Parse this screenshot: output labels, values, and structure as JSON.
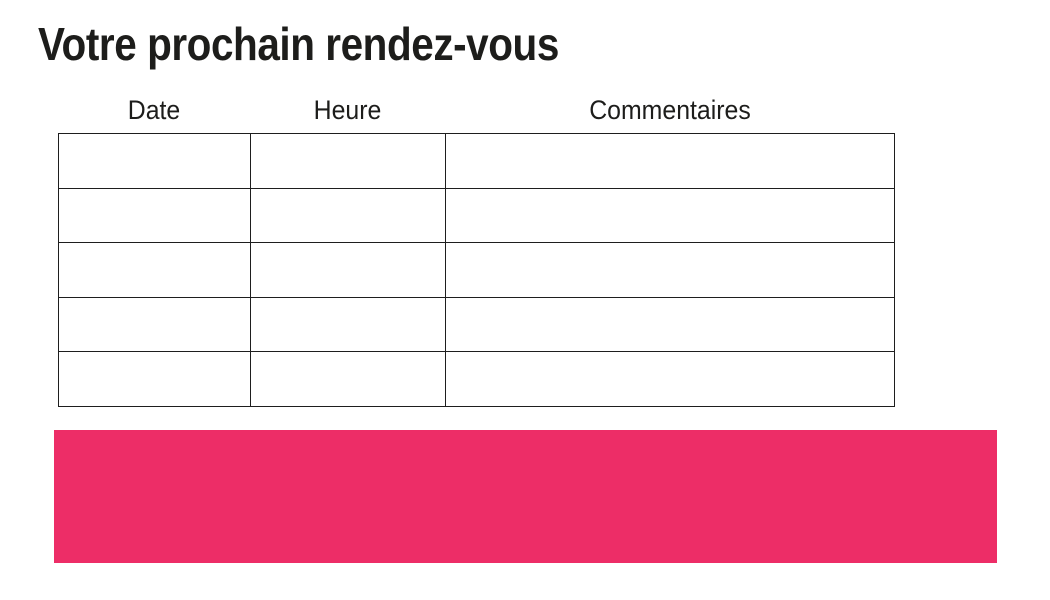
{
  "page": {
    "background": "#ffffff"
  },
  "title": "Votre prochain rendez-vous",
  "appointments_table": {
    "headers": [
      "Date",
      "Heure",
      "Commentaires"
    ],
    "rows": [
      [
        "",
        "",
        ""
      ],
      [
        "",
        "",
        ""
      ],
      [
        "",
        "",
        ""
      ],
      [
        "",
        "",
        ""
      ],
      [
        "",
        "",
        ""
      ]
    ]
  },
  "banner": {
    "color": "#ed2d67"
  },
  "colors": {
    "text": "#1d1d1b",
    "table_border": "#1e1e1e",
    "accent_pink": "#ed2d67"
  }
}
